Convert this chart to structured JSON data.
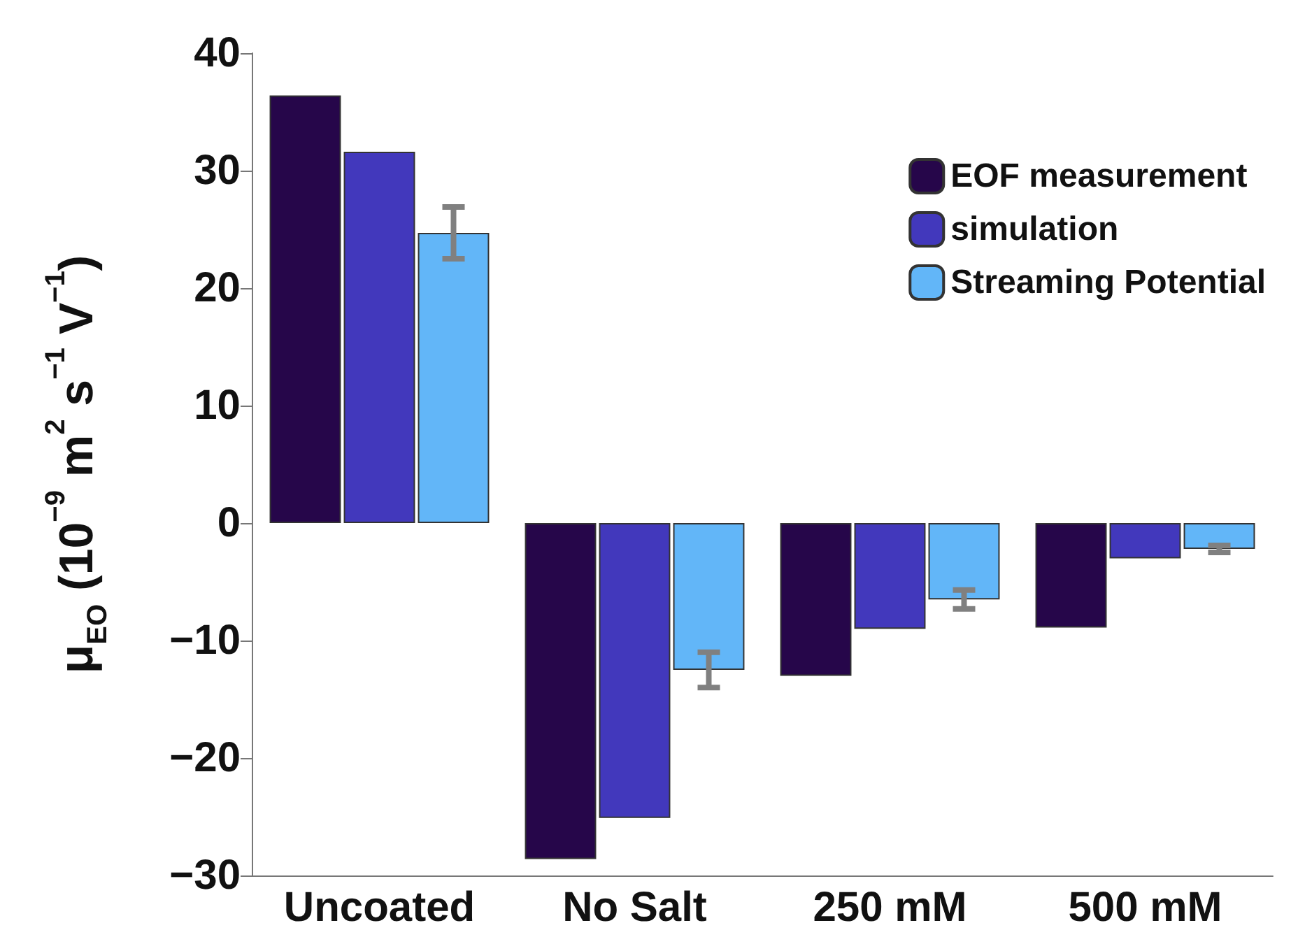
{
  "chart_data": {
    "type": "bar",
    "ylabel": "μ$_{EO}$ (10$^{−9}$ m$^{2}$ s$^{−1}$ V$^{−1}$)",
    "categories": [
      "Uncoated",
      "No Salt",
      "250 mM",
      "500 mM"
    ],
    "series": [
      {
        "name": "EOF measurement",
        "color": "#26064a",
        "values": [
          36.4,
          -28.6,
          -13.0,
          -8.9
        ]
      },
      {
        "name": "simulation",
        "color": "#4238bc",
        "values": [
          31.6,
          -25.1,
          -9.0,
          -3.0
        ]
      },
      {
        "name": "Streaming Potential",
        "color": "#62b6f8",
        "values": [
          24.7,
          -12.5,
          -6.5,
          -2.2
        ],
        "errors": [
          2.2,
          1.5,
          0.8,
          0.3
        ]
      }
    ],
    "ylim": [
      -30,
      40
    ],
    "yticks": [
      {
        "value": -30,
        "label": "−30"
      },
      {
        "value": -20,
        "label": "−20"
      },
      {
        "value": -10,
        "label": "−10"
      },
      0,
      10,
      20,
      30,
      40
    ],
    "grid": false,
    "legend": "top right"
  }
}
